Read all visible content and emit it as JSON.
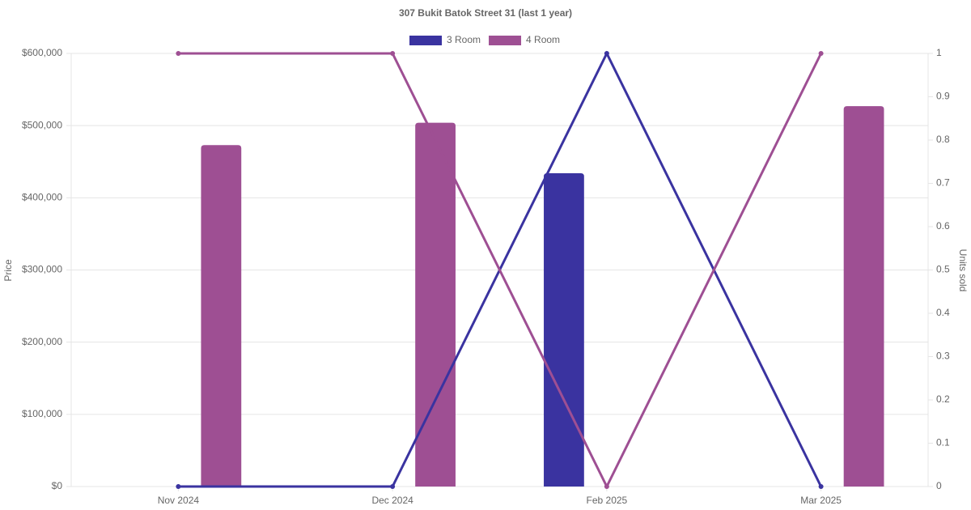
{
  "chart_data": {
    "type": "combo",
    "title": "307 Bukit Batok Street 31 (last 1 year)",
    "y_label": "Price",
    "y2_label": "Units sold",
    "categories": [
      "Nov 2024",
      "Dec 2024",
      "Feb 2025",
      "Mar 2025"
    ],
    "series": [
      {
        "name": "3 Room",
        "color": "#3a33a0",
        "values": [
          null,
          null,
          434000,
          null
        ],
        "units_sold": [
          0,
          0,
          1,
          0
        ]
      },
      {
        "name": "4 Room",
        "color": "#9e4f93",
        "values": [
          473000,
          504000,
          null,
          527000
        ],
        "units_sold": [
          1,
          1,
          0,
          1
        ]
      }
    ],
    "ylim": [
      0,
      600000
    ],
    "yticks": [
      {
        "value": 0,
        "label": "$0"
      },
      {
        "value": 100000,
        "label": "$100,000"
      },
      {
        "value": 200000,
        "label": "$200,000"
      },
      {
        "value": 300000,
        "label": "$300,000"
      },
      {
        "value": 400000,
        "label": "$400,000"
      },
      {
        "value": 500000,
        "label": "$500,000"
      },
      {
        "value": 600000,
        "label": "$600,000"
      }
    ],
    "y2lim": [
      0,
      1
    ],
    "y2ticks": [
      0,
      0.1,
      0.2,
      0.3,
      0.4,
      0.5,
      0.6,
      0.7,
      0.8,
      0.9,
      1
    ],
    "grid": true
  }
}
